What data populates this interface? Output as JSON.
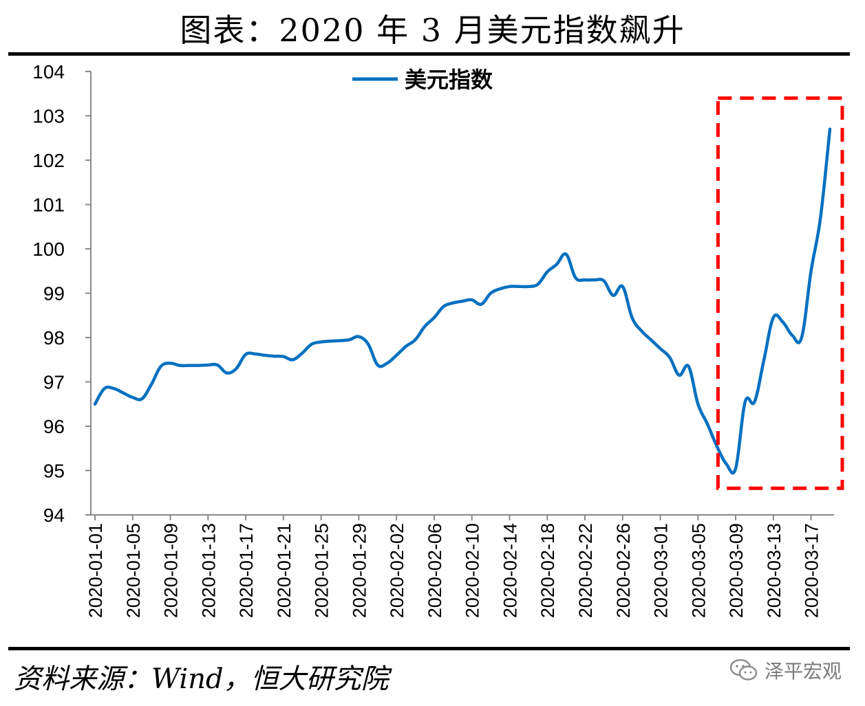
{
  "title": "图表：2020 年 3 月美元指数飙升",
  "source": "资料来源：Wind，恒大研究院",
  "watermark": "泽平宏观",
  "colors": {
    "line": "#0070C0",
    "highlight_box": "#FF0000",
    "axis": "#888888",
    "rule": "#000000"
  },
  "chart_data": {
    "type": "line",
    "series": [
      {
        "name": "美元指数",
        "x": [
          "2020-01-01",
          "2020-01-02",
          "2020-01-03",
          "2020-01-04",
          "2020-01-05",
          "2020-01-06",
          "2020-01-07",
          "2020-01-08",
          "2020-01-09",
          "2020-01-10",
          "2020-01-11",
          "2020-01-12",
          "2020-01-13",
          "2020-01-14",
          "2020-01-15",
          "2020-01-16",
          "2020-01-17",
          "2020-01-18",
          "2020-01-19",
          "2020-01-20",
          "2020-01-21",
          "2020-01-22",
          "2020-01-23",
          "2020-01-24",
          "2020-01-25",
          "2020-01-26",
          "2020-01-27",
          "2020-01-28",
          "2020-01-29",
          "2020-01-30",
          "2020-01-31",
          "2020-02-01",
          "2020-02-02",
          "2020-02-03",
          "2020-02-04",
          "2020-02-05",
          "2020-02-06",
          "2020-02-07",
          "2020-02-08",
          "2020-02-09",
          "2020-02-10",
          "2020-02-11",
          "2020-02-12",
          "2020-02-13",
          "2020-02-14",
          "2020-02-15",
          "2020-02-16",
          "2020-02-17",
          "2020-02-18",
          "2020-02-19",
          "2020-02-20",
          "2020-02-21",
          "2020-02-22",
          "2020-02-23",
          "2020-02-24",
          "2020-02-25",
          "2020-02-26",
          "2020-02-27",
          "2020-02-28",
          "2020-02-29",
          "2020-03-01",
          "2020-03-02",
          "2020-03-03",
          "2020-03-04",
          "2020-03-05",
          "2020-03-06",
          "2020-03-07",
          "2020-03-08",
          "2020-03-09",
          "2020-03-10",
          "2020-03-11",
          "2020-03-12",
          "2020-03-13",
          "2020-03-14",
          "2020-03-15",
          "2020-03-16",
          "2020-03-17",
          "2020-03-18",
          "2020-03-19"
        ],
        "values": [
          96.5,
          96.85,
          96.85,
          96.75,
          96.65,
          96.62,
          96.95,
          97.35,
          97.42,
          97.37,
          97.37,
          97.37,
          97.38,
          97.38,
          97.2,
          97.3,
          97.62,
          97.63,
          97.6,
          97.58,
          97.57,
          97.5,
          97.65,
          97.85,
          97.9,
          97.92,
          97.93,
          97.95,
          98.02,
          97.85,
          97.38,
          97.42,
          97.6,
          97.8,
          97.95,
          98.25,
          98.45,
          98.7,
          98.78,
          98.82,
          98.85,
          98.75,
          99.0,
          99.1,
          99.15,
          99.15,
          99.15,
          99.2,
          99.48,
          99.65,
          99.88,
          99.35,
          99.3,
          99.3,
          99.28,
          98.95,
          99.15,
          98.45,
          98.15,
          97.95,
          97.75,
          97.55,
          97.15,
          97.35,
          96.5,
          96.05,
          95.55,
          95.15,
          95.05,
          96.55,
          96.55,
          97.5,
          98.45,
          98.35,
          98.05,
          98.0,
          99.5,
          100.7,
          102.7
        ]
      }
    ],
    "ylim": [
      94,
      104
    ],
    "yticks": [
      94,
      95,
      96,
      97,
      98,
      99,
      100,
      101,
      102,
      103,
      104
    ],
    "xtick_labels": [
      "2020-01-01",
      "2020-01-05",
      "2020-01-09",
      "2020-01-13",
      "2020-01-17",
      "2020-01-21",
      "2020-01-25",
      "2020-01-29",
      "2020-02-02",
      "2020-02-06",
      "2020-02-10",
      "2020-02-14",
      "2020-02-18",
      "2020-02-22",
      "2020-02-26",
      "2020-03-01",
      "2020-03-05",
      "2020-03-09",
      "2020-03-13",
      "2020-03-17"
    ],
    "legend": {
      "position": "top-center",
      "label": "美元指数"
    },
    "grid": false,
    "annotation": {
      "type": "dashed-box",
      "x_from": "2020-03-08",
      "x_to": "2020-03-19",
      "y_from": 94.6,
      "y_to": 103.4
    }
  }
}
